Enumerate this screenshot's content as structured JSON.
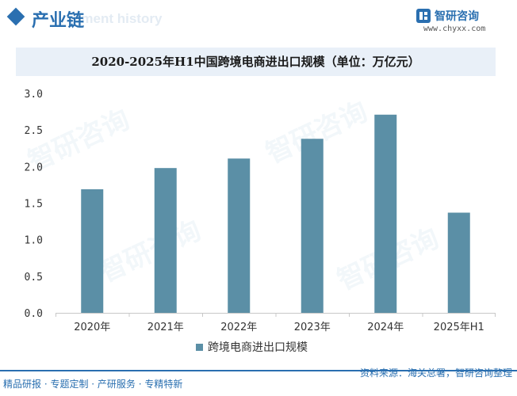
{
  "header": {
    "section_title": "产业链",
    "ghost_subtitle": "pment history",
    "brand_name": "智研咨询",
    "brand_url": "www.chyxx.com",
    "accent_color": "#2a6fb0"
  },
  "watermark_text": "智研咨询",
  "footer": {
    "left": "精品研报 · 专题定制 · 产研服务 · 专精特新",
    "right": "资料来源：海关总署，智研咨询整理"
  },
  "chart_data": {
    "type": "bar",
    "title": "2020-2025年H1中国跨境电商进出口规模（单位：万亿元）",
    "categories": [
      "2020年",
      "2021年",
      "2022年",
      "2023年",
      "2024年",
      "2025年H1"
    ],
    "series": [
      {
        "name": "跨境电商进出口规模",
        "values": [
          1.69,
          1.98,
          2.11,
          2.38,
          2.71,
          1.37
        ],
        "color": "#5b8fa6"
      }
    ],
    "yticks": [
      "0.0",
      "0.5",
      "1.0",
      "1.5",
      "2.0",
      "2.5",
      "3.0"
    ],
    "ylim": [
      0,
      3.0
    ],
    "xlabel": "",
    "ylabel": "",
    "grid": false,
    "legend_position": "bottom"
  }
}
